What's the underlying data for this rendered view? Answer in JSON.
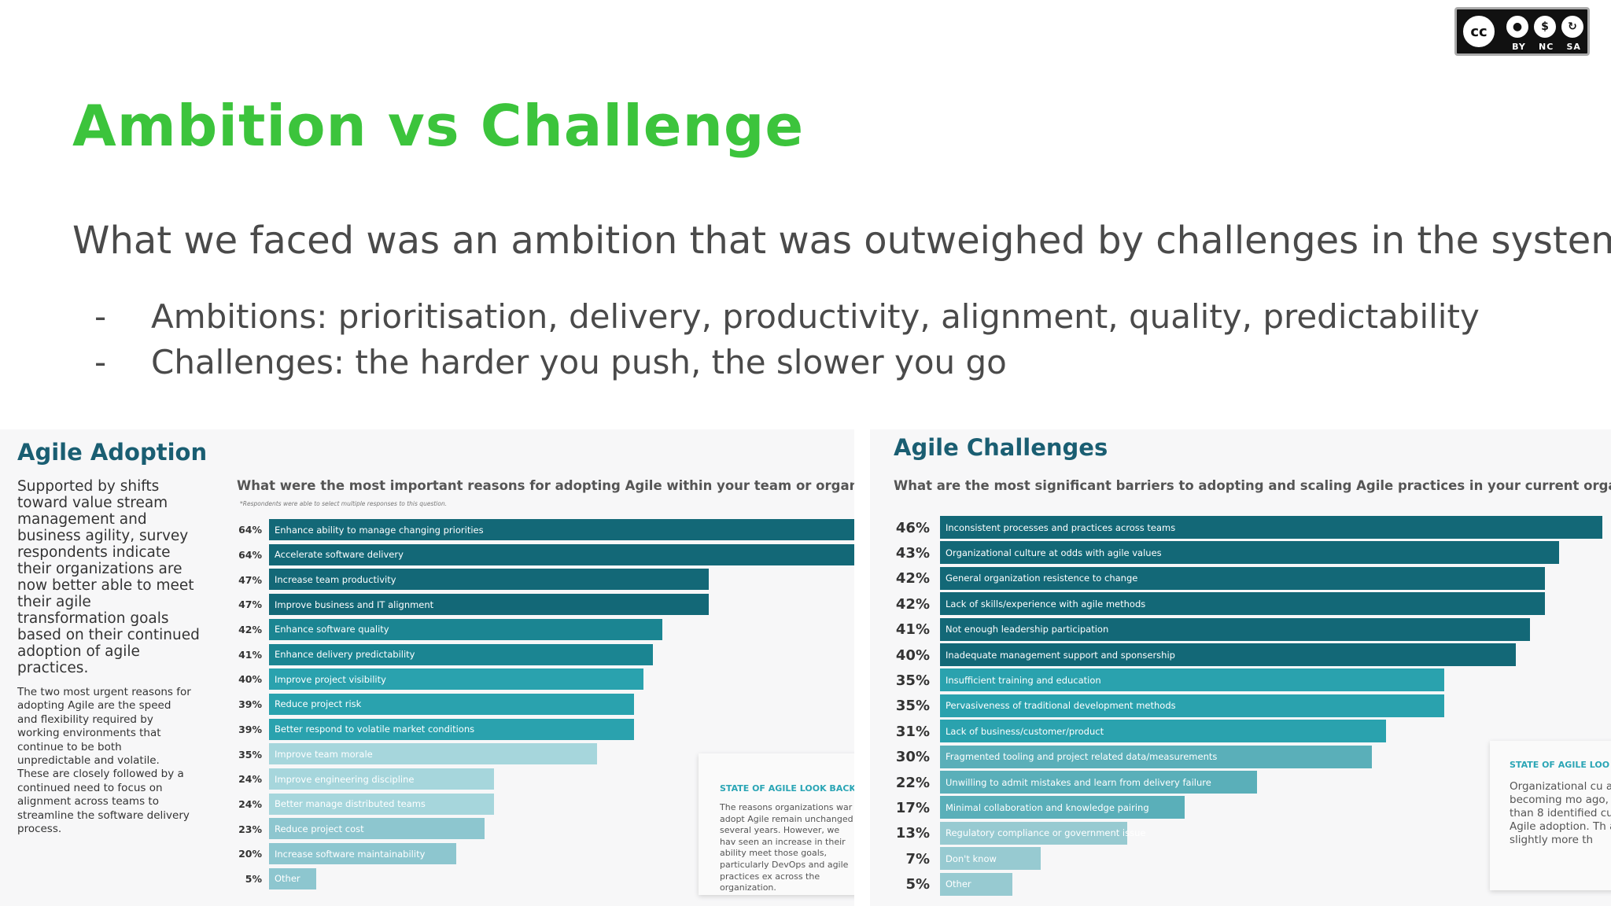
{
  "license_badge": {
    "icons": [
      "cc-icon",
      "by-icon",
      "nc-icon",
      "sa-icon"
    ],
    "cc_text": "cc",
    "labels": [
      "BY",
      "NC",
      "SA"
    ]
  },
  "slide": {
    "title": "Ambition vs Challenge",
    "subtitle": "What we faced was an ambition that was outweighed by challenges in the system",
    "bullets": [
      {
        "dash": "-",
        "text": "Ambitions: prioritisation, delivery, productivity, alignment, quality, predictability"
      },
      {
        "dash": "-",
        "text": "Challenges: the harder you push, the slower you go"
      }
    ]
  },
  "adoption_panel": {
    "heading": "Agile Adoption",
    "paragraph1": "Supported by shifts toward value stream management and business agility, survey respondents indicate their organizations are now better able to meet their agile transformation goals based on their continued adoption of agile practices.",
    "paragraph2": "The two most urgent reasons for adopting Agile are the speed and flexibility required by working environments that continue to be both unpredictable and volatile. These are closely followed by a continued need to focus on alignment across teams to streamline the software delivery process.",
    "question": "What were the most important reasons for adopting Agile within your team or organization?",
    "note": "*Respondents were able to select multiple responses to this question.",
    "lookback_title": "STATE OF AGILE LOOK BACK",
    "lookback_body": "The reasons organizations war adopt Agile remain unchanged several years. However, we hav seen an increase in their ability meet those goals, particularly DevOps and agile practices ex across the organization."
  },
  "challenges_panel": {
    "heading": "Agile Challenges",
    "question": "What are the most significant barriers to adopting and scaling Agile practices in your current organization?",
    "lookback_title": "STATE OF AGILE LOO",
    "lookback_body": "Organizational cu are becoming mo ago, more than 8 identified culture Agile adoption. Th at slightly more th"
  },
  "chart_data": [
    {
      "type": "bar",
      "orientation": "horizontal",
      "title": "What were the most important reasons for adopting Agile within your team or organization?",
      "unit": "%",
      "categories": [
        "Enhance ability to manage changing priorities",
        "Accelerate software delivery",
        "Increase team productivity",
        "Improve business and IT alignment",
        "Enhance software quality",
        "Enhance delivery predictability",
        "Improve project visibility",
        "Reduce project risk",
        "Better respond to volatile market conditions",
        "Improve team morale",
        "Improve engineering discipline",
        "Better manage distributed teams",
        "Reduce project cost",
        "Increase software maintainability",
        "Other"
      ],
      "values": [
        64,
        64,
        47,
        47,
        42,
        41,
        40,
        39,
        39,
        35,
        24,
        24,
        23,
        20,
        5
      ],
      "value_labels": [
        "64%",
        "64%",
        "47%",
        "47%",
        "42%",
        "41%",
        "40%",
        "39%",
        "39%",
        "35%",
        "24%",
        "24%",
        "23%",
        "20%",
        "5%"
      ],
      "colors": [
        "#136877",
        "#136877",
        "#136877",
        "#136877",
        "#1b8592",
        "#1b8592",
        "#2aa2ae",
        "#2aa2ae",
        "#2aa2ae",
        "#a6d6dc",
        "#a6d6dc",
        "#a6d6dc",
        "#8dc6cf",
        "#8dc6cf",
        "#8dc6cf"
      ]
    },
    {
      "type": "bar",
      "orientation": "horizontal",
      "title": "What are the most significant barriers to adopting and scaling Agile practices in your current organization?",
      "unit": "%",
      "categories": [
        "Inconsistent processes and practices across teams",
        "Organizational culture at odds with agile values",
        "General organization resistence to change",
        "Lack of skills/experience with agile methods",
        "Not enough leadership participation",
        "Inadequate management support and sponsership",
        "Insufficient training and education",
        "Pervasiveness of traditional development methods",
        "Lack of business/customer/product",
        "Fragmented tooling and project related data/measurements",
        "Unwilling to admit mistakes and learn from delivery failure",
        "Minimal collaboration and knowledge pairing",
        "Regulatory compliance or government issue",
        "Don't know",
        "Other"
      ],
      "values": [
        46,
        43,
        42,
        42,
        41,
        40,
        35,
        35,
        31,
        30,
        22,
        17,
        13,
        7,
        5
      ],
      "value_labels": [
        "46%",
        "43%",
        "42%",
        "42%",
        "41%",
        "40%",
        "35%",
        "35%",
        "31%",
        "30%",
        "22%",
        "17%",
        "13%",
        "7%",
        "5%"
      ],
      "colors": [
        "#136877",
        "#136877",
        "#136877",
        "#136877",
        "#136877",
        "#136877",
        "#2aa2ae",
        "#2aa2ae",
        "#2aa2ae",
        "#5aafb9",
        "#5aafb9",
        "#5aafb9",
        "#97cad1",
        "#97cad1",
        "#97cad1"
      ]
    }
  ]
}
